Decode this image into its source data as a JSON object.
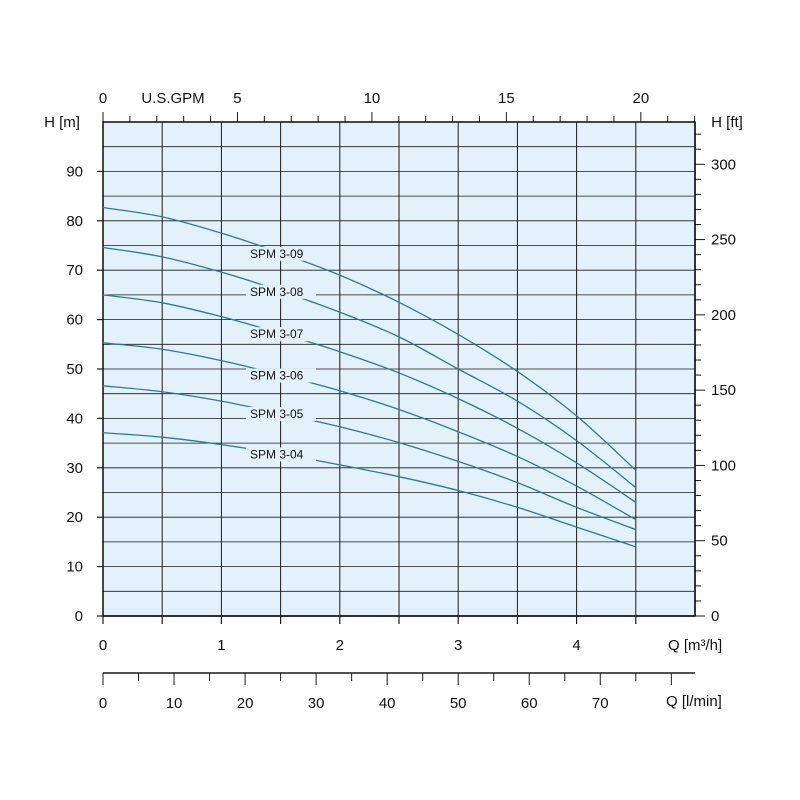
{
  "chart_data": {
    "type": "line",
    "colors": {
      "plot_bg": "#e3f1fb",
      "grid": "#1a1a1a",
      "curve": "#2a7a96"
    },
    "axes": {
      "x_bottom_m3h": {
        "label": "Q [m³/h]",
        "range": [
          0,
          5
        ],
        "ticks": [
          0,
          1,
          2,
          3,
          4
        ]
      },
      "x_bottom_lmin": {
        "label": "Q [l/min]",
        "ticks": [
          0,
          10,
          20,
          30,
          40,
          50,
          60,
          70
        ]
      },
      "x_top_usgpm": {
        "label": "U.S.GPM",
        "ticks": [
          0,
          5,
          10,
          15,
          20
        ]
      },
      "y_left_m": {
        "label": "H [m]",
        "range": [
          0,
          100
        ],
        "ticks": [
          0,
          10,
          20,
          30,
          40,
          50,
          60,
          70,
          80,
          90
        ]
      },
      "y_right_ft": {
        "label": "H [ft]",
        "ticks": [
          0,
          50,
          100,
          150,
          200,
          250,
          300
        ]
      }
    },
    "grid": true,
    "series": [
      {
        "name": "SPM 3-09",
        "x": [
          0,
          0.5,
          1,
          1.5,
          2,
          2.5,
          3,
          3.5,
          4,
          4.5
        ],
        "y": [
          82.7,
          80.8,
          77.5,
          73.5,
          69,
          63.5,
          57,
          49.5,
          40.5,
          29.5
        ]
      },
      {
        "name": "SPM 3-08",
        "x": [
          0,
          0.5,
          1,
          1.5,
          2,
          2.5,
          3,
          3.5,
          4,
          4.5
        ],
        "y": [
          74.6,
          72.7,
          69.6,
          65.8,
          61.5,
          56.5,
          50,
          43.5,
          35.5,
          26
        ]
      },
      {
        "name": "SPM 3-07",
        "x": [
          0,
          0.5,
          1,
          1.5,
          2,
          2.5,
          3,
          3.5,
          4,
          4.5
        ],
        "y": [
          65,
          63.4,
          60.6,
          57.2,
          53.5,
          49.2,
          44,
          38,
          31,
          23
        ]
      },
      {
        "name": "SPM 3-06",
        "x": [
          0,
          0.5,
          1,
          1.5,
          2,
          2.5,
          3,
          3.5,
          4,
          4.5
        ],
        "y": [
          55.3,
          54,
          51.7,
          48.8,
          45.6,
          41.8,
          37.3,
          32.3,
          26.3,
          19.5
        ]
      },
      {
        "name": "SPM 3-05",
        "x": [
          0,
          0.5,
          1,
          1.5,
          2,
          2.5,
          3,
          3.5,
          4,
          4.5
        ],
        "y": [
          46.6,
          45.4,
          43.5,
          41,
          38.3,
          35.1,
          31.3,
          27,
          22,
          17.5
        ]
      },
      {
        "name": "SPM 3-04",
        "x": [
          0,
          0.5,
          1,
          1.5,
          2,
          2.5,
          3,
          3.5,
          4,
          4.5
        ],
        "y": [
          37.1,
          36.2,
          34.7,
          32.8,
          30.6,
          28.2,
          25.4,
          22,
          18,
          14
        ]
      }
    ]
  }
}
